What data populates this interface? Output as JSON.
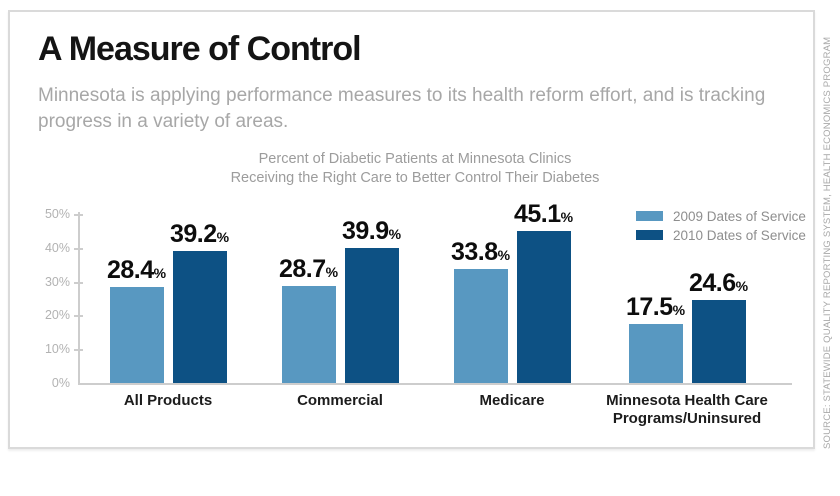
{
  "header": {
    "title": "A Measure of Control",
    "subtitle": "Minnesota is applying performance measures to its health reform effort, and is tracking progress in a variety of areas."
  },
  "chart_data": {
    "type": "bar",
    "title_lines": [
      "Percent of Diabetic Patients at Minnesota Clinics",
      "Receiving the Right Care to Better Control Their Diabetes"
    ],
    "categories": [
      "All Products",
      "Commercial",
      "Medicare",
      "Minnesota Health Care Programs/Uninsured"
    ],
    "series": [
      {
        "name": "2009 Dates of Service",
        "color": "#5898c1",
        "values": [
          28.4,
          28.7,
          33.8,
          17.5
        ]
      },
      {
        "name": "2010 Dates of Service",
        "color": "#0d5184",
        "values": [
          39.2,
          39.9,
          45.1,
          24.6
        ]
      }
    ],
    "y_tick_labels": [
      "0%",
      "10%",
      "20%",
      "30%",
      "40%",
      "50%"
    ],
    "ylim": [
      0,
      50
    ],
    "unit": "%",
    "grid": false,
    "legend_position": "top-right"
  },
  "source": "SOURCE: STATEWIDE QUALITY REPORTING SYSTEM, HEALTH ECONOMICS PROGRAM"
}
